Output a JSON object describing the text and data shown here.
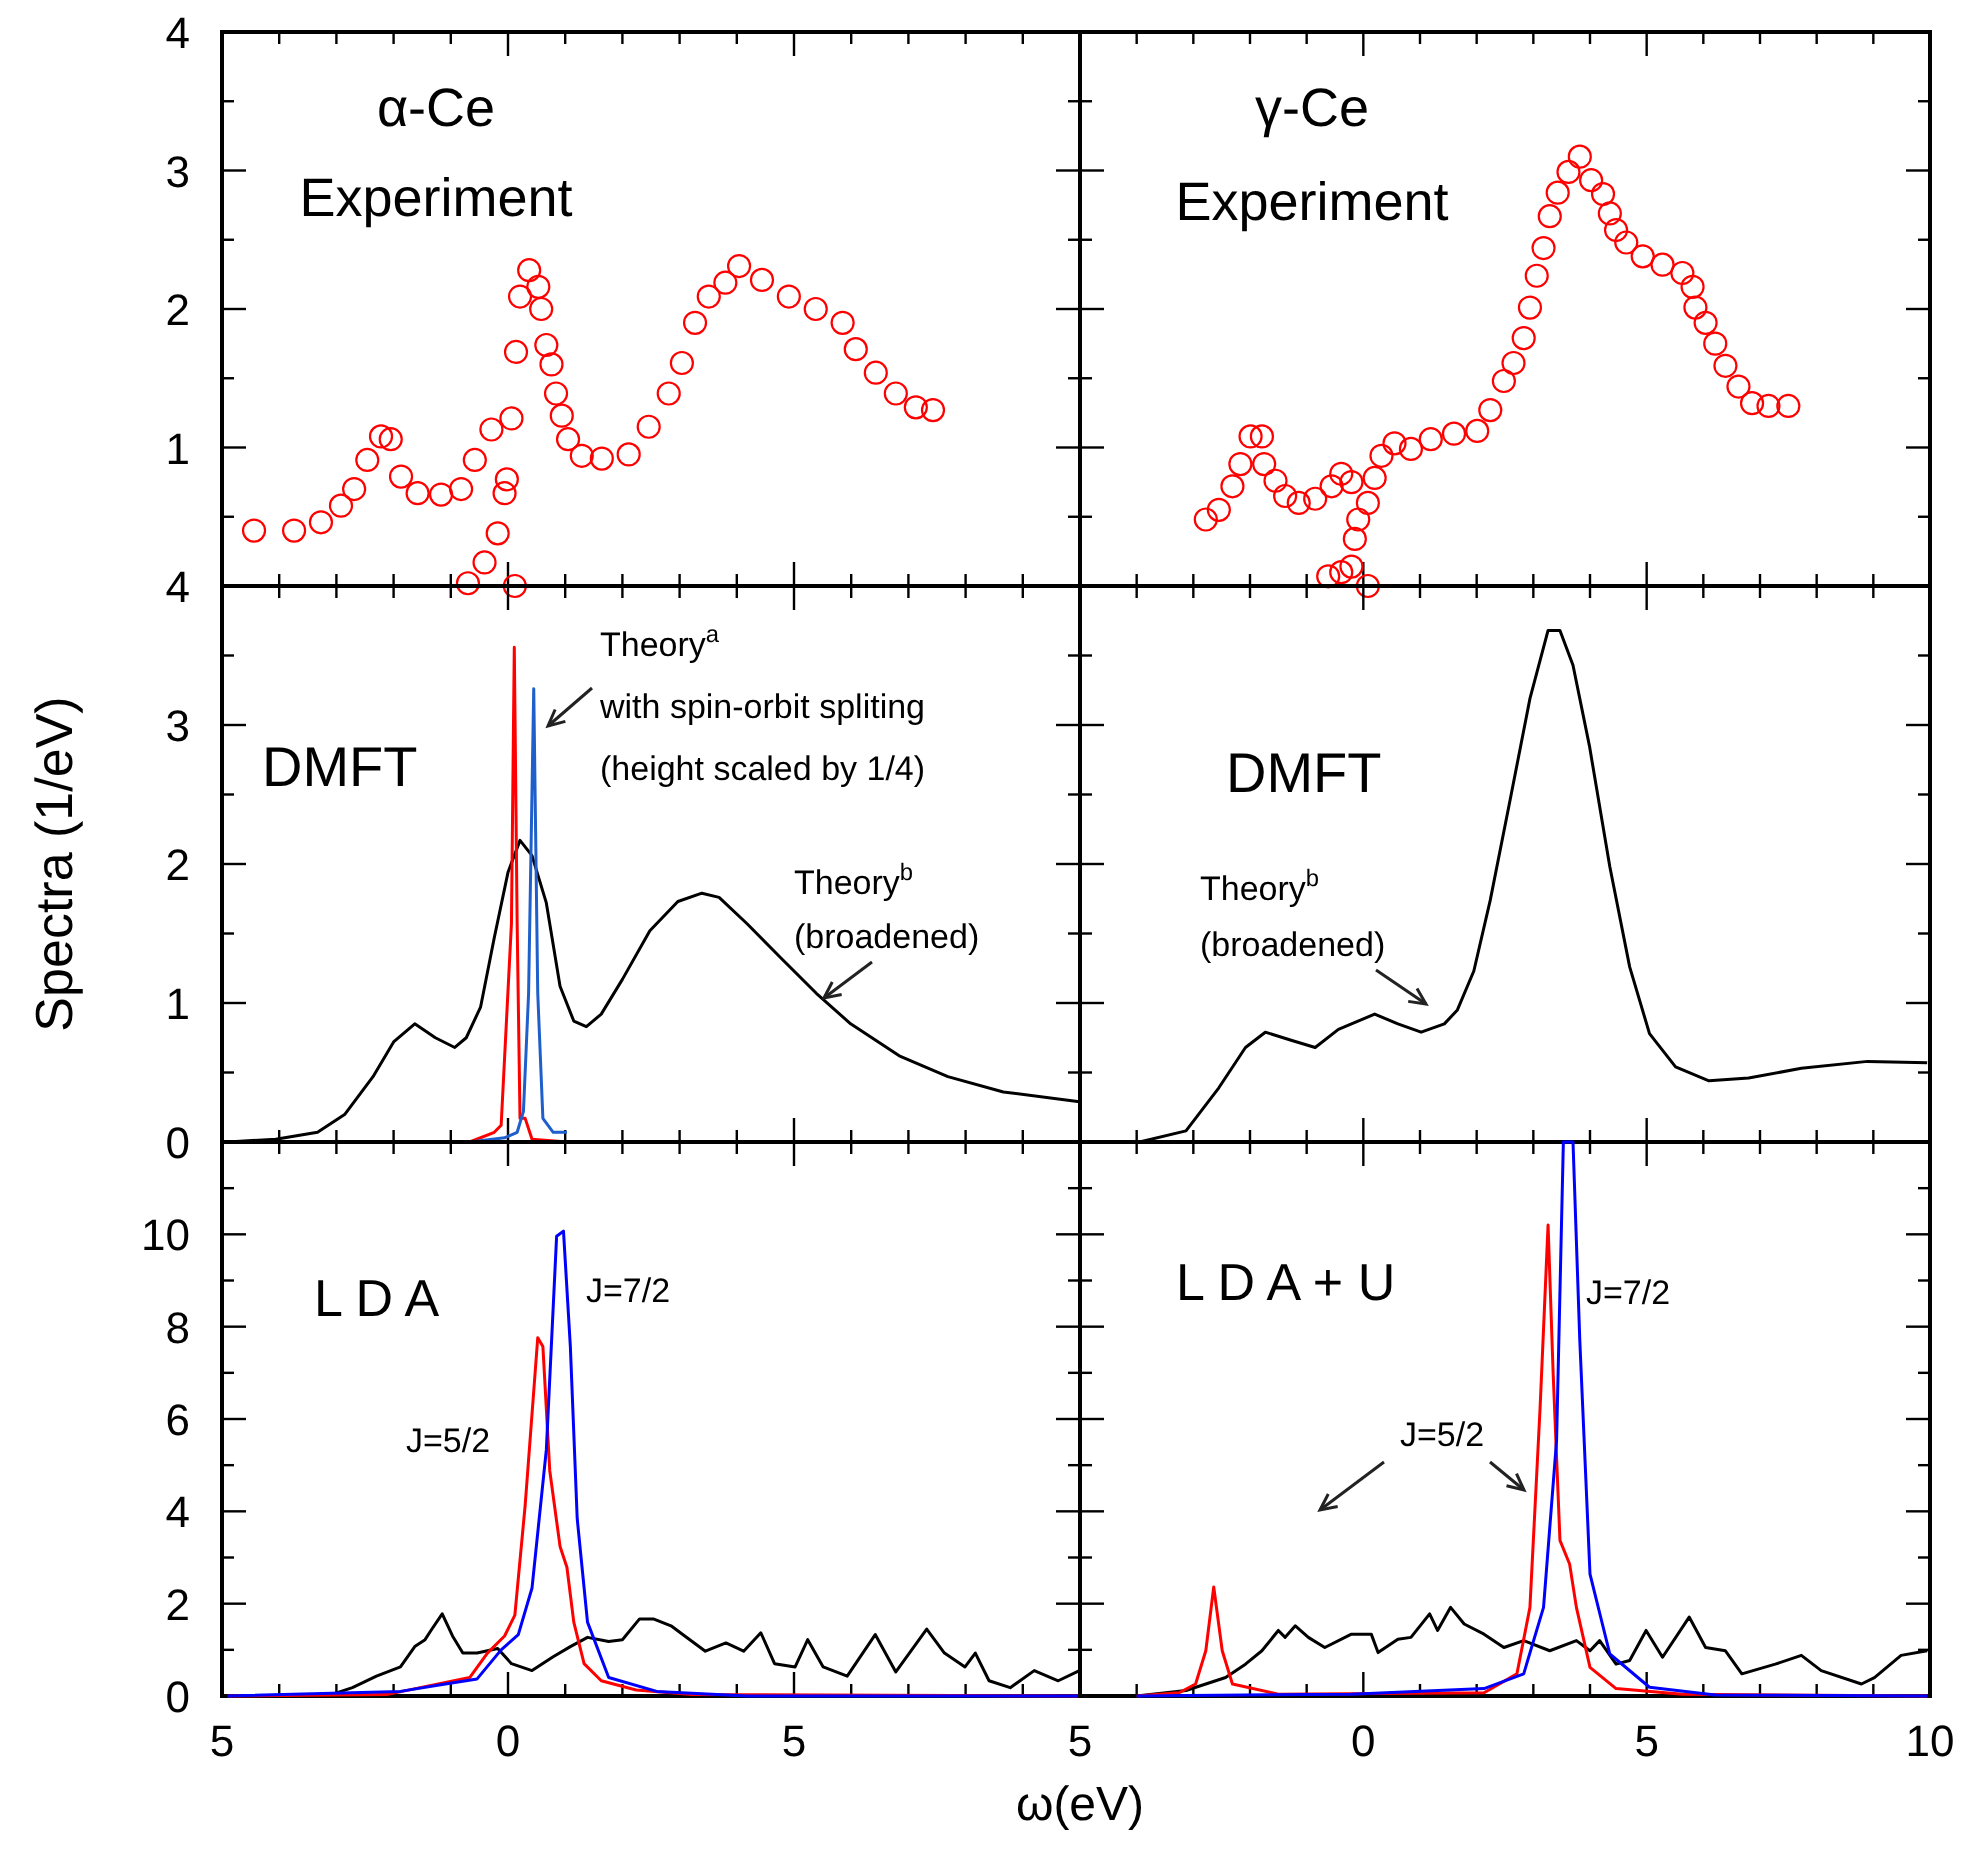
{
  "chart_data": [
    {
      "type": "scatter",
      "title": "α-Ce\nExperiment",
      "marker": "circle",
      "tick_labels": "y",
      "xlim": [
        -5,
        10
      ],
      "ylim": [
        0,
        4
      ],
      "xticks": [
        -5,
        {
          "value": -4,
          "label": null
        },
        {
          "value": -3,
          "label": null
        },
        {
          "value": -2,
          "label": null
        },
        {
          "value": -1,
          "label": null
        },
        0,
        {
          "value": 1,
          "label": null
        },
        {
          "value": 2,
          "label": null
        },
        {
          "value": 3,
          "label": null
        },
        {
          "value": 4,
          "label": null
        },
        5,
        {
          "value": 6,
          "label": null
        },
        {
          "value": 7,
          "label": null
        },
        {
          "value": 8,
          "label": null
        },
        {
          "value": 9,
          "label": null
        },
        {
          "value": 10,
          "label": null
        }
      ],
      "yticks": [
        {
          "value": 0,
          "label": null
        },
        {
          "value": 0.5,
          "label": null
        },
        1,
        {
          "value": 1.5,
          "label": null
        },
        2,
        {
          "value": 2.5,
          "label": null
        },
        3,
        {
          "value": 3.5,
          "label": null
        },
        4
      ],
      "series": [
        {
          "color": "#ff0000",
          "x": [
            -4.44,
            -3.74,
            -3.27,
            -2.92,
            -2.69,
            -2.46,
            -2.22,
            -2.05,
            -1.87,
            -1.58,
            -1.17,
            -0.82,
            -0.58,
            -0.29,
            0.06,
            -0.7,
            -0.41,
            -0.18,
            -0.06,
            -0.02,
            0.12,
            0.14,
            0.21,
            0.37,
            0.53,
            0.58,
            0.67,
            0.76,
            0.84,
            0.94,
            1.05,
            1.29,
            1.64,
            2.11,
            2.46,
            2.81,
            3.04,
            3.27,
            3.51,
            3.8,
            4.04,
            4.44,
            4.91,
            5.38,
            5.85,
            6.08,
            6.43,
            6.78,
            7.13,
            7.43
          ],
          "values": [
            0.4,
            0.4,
            0.46,
            0.58,
            0.7,
            0.91,
            1.08,
            1.06,
            0.79,
            0.67,
            0.66,
            0.7,
            0.91,
            1.13,
            1.21,
            0.02,
            0.17,
            0.38,
            0.67,
            0.77,
            0.0,
            1.69,
            2.09,
            2.28,
            2.16,
            2.0,
            1.74,
            1.6,
            1.39,
            1.23,
            1.06,
            0.94,
            0.92,
            0.95,
            1.15,
            1.39,
            1.61,
            1.9,
            2.09,
            2.19,
            2.31,
            2.21,
            2.09,
            2.0,
            1.9,
            1.71,
            1.54,
            1.39,
            1.29,
            1.27
          ]
        }
      ]
    },
    {
      "type": "scatter",
      "title": "γ-Ce\nExperiment",
      "marker": "circle",
      "tick_labels": false,
      "xlim": [
        -5,
        10
      ],
      "ylim": [
        0,
        4
      ],
      "xticks": [
        -5,
        {
          "value": -4,
          "label": null
        },
        {
          "value": -3,
          "label": null
        },
        {
          "value": -2,
          "label": null
        },
        {
          "value": -1,
          "label": null
        },
        0,
        {
          "value": 1,
          "label": null
        },
        {
          "value": 2,
          "label": null
        },
        {
          "value": 3,
          "label": null
        },
        {
          "value": 4,
          "label": null
        },
        5,
        {
          "value": 6,
          "label": null
        },
        {
          "value": 7,
          "label": null
        },
        {
          "value": 8,
          "label": null
        },
        {
          "value": 9,
          "label": null
        },
        10
      ],
      "yticks": [
        {
          "value": 0,
          "label": null
        },
        {
          "value": 0.5,
          "label": null
        },
        1,
        {
          "value": 1.5,
          "label": null
        },
        2,
        {
          "value": 2.5,
          "label": null
        },
        3,
        {
          "value": 3.5,
          "label": null
        },
        4
      ],
      "series": [
        {
          "color": "#ff0000",
          "x": [
            -2.78,
            -2.55,
            -2.31,
            -2.17,
            -1.99,
            -1.79,
            -1.75,
            -1.55,
            -1.38,
            -1.14,
            -0.85,
            -0.56,
            -0.39,
            -0.21,
            -0.62,
            -0.39,
            -0.21,
            -0.15,
            -0.09,
            0.08,
            0.08,
            0.2,
            0.32,
            0.55,
            0.84,
            1.19,
            1.6,
            2.01,
            2.24,
            2.48,
            2.65,
            2.83,
            2.94,
            3.06,
            3.18,
            3.29,
            3.43,
            3.62,
            3.82,
            4.02,
            4.23,
            4.35,
            4.46,
            4.64,
            4.93,
            5.28,
            5.63,
            5.81,
            5.86,
            6.04,
            6.21,
            6.39,
            6.62,
            6.86,
            7.15,
            7.5
          ],
          "values": [
            0.48,
            0.55,
            0.72,
            0.88,
            1.08,
            1.08,
            0.88,
            0.76,
            0.65,
            0.6,
            0.63,
            0.72,
            0.81,
            0.75,
            0.07,
            0.1,
            0.14,
            0.34,
            0.48,
            0.6,
            0.0,
            0.78,
            0.94,
            1.03,
            0.99,
            1.06,
            1.1,
            1.12,
            1.27,
            1.48,
            1.61,
            1.79,
            2.01,
            2.24,
            2.44,
            2.67,
            2.84,
            2.99,
            3.1,
            2.93,
            2.83,
            2.69,
            2.57,
            2.48,
            2.38,
            2.32,
            2.26,
            2.16,
            2.01,
            1.9,
            1.75,
            1.59,
            1.44,
            1.32,
            1.3,
            1.3
          ]
        }
      ]
    },
    {
      "type": "line",
      "title": "DMFT",
      "ylabel": "Spectra (1/eV)",
      "tick_labels": "y",
      "xlim": [
        -5,
        10
      ],
      "ylim": [
        0,
        4
      ],
      "xticks": [
        -5,
        {
          "value": -4,
          "label": null
        },
        {
          "value": -3,
          "label": null
        },
        {
          "value": -2,
          "label": null
        },
        {
          "value": -1,
          "label": null
        },
        0,
        {
          "value": 1,
          "label": null
        },
        {
          "value": 2,
          "label": null
        },
        {
          "value": 3,
          "label": null
        },
        {
          "value": 4,
          "label": null
        },
        5,
        {
          "value": 6,
          "label": null
        },
        {
          "value": 7,
          "label": null
        },
        {
          "value": 8,
          "label": null
        },
        {
          "value": 9,
          "label": null
        },
        {
          "value": 10,
          "label": null
        }
      ],
      "yticks": [
        0,
        {
          "value": 0.5,
          "label": null
        },
        1,
        {
          "value": 1.5,
          "label": null
        },
        2,
        {
          "value": 2.5,
          "label": null
        },
        3,
        {
          "value": 3.5,
          "label": null
        },
        4
      ],
      "annotations": [
        "Theory$^{a}$\nwith spin-orbit spliting\n(height scaled by 1/4)",
        "Theory$^{b}$\n(broadened)"
      ],
      "series": [
        {
          "color": "#000000",
          "x": [
            -4.9,
            -4.06,
            -3.33,
            -2.85,
            -2.36,
            -2.0,
            -1.63,
            -1.27,
            -0.93,
            -0.73,
            -0.48,
            -0.24,
            0,
            0.21,
            0.42,
            0.67,
            0.91,
            1.15,
            1.37,
            1.63,
            2.0,
            2.48,
            2.97,
            3.39,
            3.69,
            4.18,
            4.78,
            5.39,
            5.99,
            6.84,
            7.69,
            8.66,
            9.99
          ],
          "values": [
            0,
            0.02,
            0.07,
            0.2,
            0.47,
            0.72,
            0.85,
            0.75,
            0.68,
            0.75,
            0.97,
            1.47,
            1.94,
            2.17,
            2.06,
            1.72,
            1.12,
            0.87,
            0.83,
            0.92,
            1.17,
            1.52,
            1.73,
            1.79,
            1.76,
            1.57,
            1.32,
            1.07,
            0.85,
            0.62,
            0.47,
            0.36,
            0.29
          ]
        },
        {
          "color": "#ff0000",
          "x": [
            -0.67,
            -0.24,
            -0.12,
            0.06,
            0.11,
            0.16,
            0.21,
            0.3,
            0.42,
            1.03
          ],
          "values": [
            0,
            0.07,
            0.12,
            1.57,
            3.56,
            1.57,
            0.17,
            0.17,
            0.02,
            0
          ]
        },
        {
          "color": "#1f5fcc",
          "x": [
            -0.67,
            -0.06,
            0.16,
            0.27,
            0.36,
            0.45,
            0.52,
            0.61,
            0.79,
            1.03
          ],
          "values": [
            0,
            0.03,
            0.07,
            0.22,
            1.07,
            3.26,
            1.07,
            0.17,
            0.07,
            0.07
          ]
        }
      ]
    },
    {
      "type": "line",
      "title": "DMFT",
      "tick_labels": false,
      "xlim": [
        -5,
        10
      ],
      "ylim": [
        0,
        4
      ],
      "xticks": [
        -5,
        {
          "value": -4,
          "label": null
        },
        {
          "value": -3,
          "label": null
        },
        {
          "value": -2,
          "label": null
        },
        {
          "value": -1,
          "label": null
        },
        0,
        {
          "value": 1,
          "label": null
        },
        {
          "value": 2,
          "label": null
        },
        {
          "value": 3,
          "label": null
        },
        {
          "value": 4,
          "label": null
        },
        5,
        {
          "value": 6,
          "label": null
        },
        {
          "value": 7,
          "label": null
        },
        {
          "value": 8,
          "label": null
        },
        {
          "value": 9,
          "label": null
        },
        10
      ],
      "yticks": [
        0,
        {
          "value": 0.5,
          "label": null
        },
        1,
        {
          "value": 1.5,
          "label": null
        },
        2,
        {
          "value": 2.5,
          "label": null
        },
        3,
        {
          "value": 3.5,
          "label": null
        },
        4
      ],
      "annotations": [
        "Theory$^{b}$\n(broadened)"
      ],
      "series": [
        {
          "color": "#000000",
          "x": [
            -3.95,
            -3.13,
            -2.55,
            -2.08,
            -1.73,
            -1.26,
            -0.85,
            -0.44,
            0.2,
            0.61,
            1.02,
            1.43,
            1.66,
            1.95,
            2.24,
            2.59,
            2.94,
            3.26,
            3.47,
            3.7,
            3.99,
            4.35,
            4.7,
            5.05,
            5.51,
            6.1,
            6.8,
            7.73,
            8.9,
            9.95
          ],
          "values": [
            0,
            0.08,
            0.39,
            0.68,
            0.79,
            0.73,
            0.68,
            0.81,
            0.92,
            0.85,
            0.79,
            0.85,
            0.95,
            1.23,
            1.74,
            2.46,
            3.19,
            3.68,
            3.68,
            3.43,
            2.85,
            1.98,
            1.26,
            0.78,
            0.54,
            0.44,
            0.46,
            0.53,
            0.58,
            0.57
          ]
        }
      ]
    },
    {
      "type": "line",
      "title": "L D A",
      "xlabel": "ω(eV)",
      "xlim": [
        -5,
        10
      ],
      "ylim": [
        0,
        12
      ],
      "xticks": [
        {
          "value": -5,
          "label": "5"
        },
        {
          "value": -4,
          "label": null
        },
        {
          "value": -3,
          "label": null
        },
        {
          "value": -2,
          "label": null
        },
        {
          "value": -1,
          "label": null
        },
        0,
        {
          "value": 1,
          "label": null
        },
        {
          "value": 2,
          "label": null
        },
        {
          "value": 3,
          "label": null
        },
        {
          "value": 4,
          "label": null
        },
        5,
        {
          "value": 6,
          "label": null
        },
        {
          "value": 7,
          "label": null
        },
        {
          "value": 8,
          "label": null
        },
        {
          "value": 9,
          "label": null
        },
        {
          "value": 10,
          "label": null
        }
      ],
      "yticks": [
        0,
        {
          "value": 1,
          "label": null
        },
        2,
        {
          "value": 3,
          "label": null
        },
        4,
        {
          "value": 5,
          "label": null
        },
        6,
        {
          "value": 7,
          "label": null
        },
        8,
        {
          "value": 9,
          "label": null
        },
        10,
        {
          "value": 11,
          "label": null
        },
        {
          "value": 12,
          "label": null
        }
      ],
      "series": [
        {
          "color": "#000000",
          "x": [
            -4.9,
            -3.09,
            -2.72,
            -2.3,
            -1.88,
            -1.63,
            -1.45,
            -1.33,
            -1.15,
            -0.97,
            -0.79,
            -0.54,
            -0.18,
            0.06,
            0.42,
            0.79,
            1.09,
            1.39,
            1.76,
            2.0,
            2.3,
            2.54,
            2.85,
            3.09,
            3.45,
            3.81,
            4.12,
            4.42,
            4.66,
            5.02,
            5.24,
            5.51,
            5.93,
            6.42,
            6.78,
            7.32,
            7.63,
            7.99,
            8.17,
            8.41,
            8.78,
            9.2,
            9.62,
            9.99
          ],
          "values": [
            0,
            0.03,
            0.18,
            0.43,
            0.63,
            1.07,
            1.22,
            1.45,
            1.78,
            1.3,
            0.93,
            0.93,
            1.03,
            0.7,
            0.55,
            0.85,
            1.07,
            1.27,
            1.18,
            1.22,
            1.67,
            1.67,
            1.52,
            1.3,
            0.97,
            1.15,
            0.97,
            1.37,
            0.7,
            0.63,
            1.22,
            0.63,
            0.43,
            1.33,
            0.52,
            1.45,
            0.93,
            0.63,
            0.93,
            0.33,
            0.18,
            0.55,
            0.33,
            0.55
          ]
        },
        {
          "name": "J=5/2",
          "color": "#ff0000",
          "x": [
            -4.9,
            -2.12,
            -1.39,
            -0.67,
            -0.36,
            -0.06,
            0.12,
            0.3,
            0.52,
            0.61,
            0.73,
            0.91,
            1.03,
            1.15,
            1.33,
            1.63,
            2.24,
            3.21,
            9.99
          ],
          "values": [
            0,
            0.03,
            0.22,
            0.4,
            0.93,
            1.3,
            1.75,
            4.13,
            7.76,
            7.57,
            4.88,
            3.24,
            2.79,
            1.6,
            0.7,
            0.33,
            0.13,
            0.03,
            0
          ]
        },
        {
          "name": "J=7/2",
          "color": "#0000ff",
          "x": [
            -4.9,
            -1.88,
            -1.15,
            -0.54,
            -0.12,
            0.18,
            0.42,
            0.67,
            0.85,
            0.97,
            1.09,
            1.21,
            1.39,
            1.76,
            2.6,
            4.18,
            9.99
          ],
          "values": [
            0,
            0.1,
            0.25,
            0.37,
            1.0,
            1.33,
            2.34,
            5.33,
            9.96,
            10.07,
            7.57,
            3.84,
            1.6,
            0.4,
            0.1,
            0,
            0
          ]
        }
      ]
    },
    {
      "type": "line",
      "title": "L D A + U",
      "tick_labels": "x",
      "xlim": [
        -5,
        10
      ],
      "ylim": [
        0,
        12
      ],
      "xticks": [
        {
          "value": -5,
          "label": "5"
        },
        {
          "value": -4,
          "label": null
        },
        {
          "value": -3,
          "label": null
        },
        {
          "value": -2,
          "label": null
        },
        {
          "value": -1,
          "label": null
        },
        0,
        {
          "value": 1,
          "label": null
        },
        {
          "value": 2,
          "label": null
        },
        {
          "value": 3,
          "label": null
        },
        {
          "value": 4,
          "label": null
        },
        5,
        {
          "value": 6,
          "label": null
        },
        {
          "value": 7,
          "label": null
        },
        {
          "value": 8,
          "label": null
        },
        {
          "value": 9,
          "label": null
        },
        10
      ],
      "yticks": [
        0,
        {
          "value": 1,
          "label": null
        },
        2,
        {
          "value": 3,
          "label": null
        },
        4,
        {
          "value": 5,
          "label": null
        },
        6,
        {
          "value": 7,
          "label": null
        },
        8,
        {
          "value": 9,
          "label": null
        },
        10,
        {
          "value": 11,
          "label": null
        },
        {
          "value": 12,
          "label": null
        }
      ],
      "series": [
        {
          "color": "#000000",
          "x": [
            -4.0,
            -3.13,
            -2.43,
            -2.08,
            -1.79,
            -1.5,
            -1.38,
            -1.2,
            -0.97,
            -0.68,
            -0.21,
            0.14,
            0.26,
            0.61,
            0.84,
            1.17,
            1.31,
            1.54,
            1.78,
            2.13,
            2.48,
            2.83,
            3.29,
            3.76,
            4.0,
            4.17,
            4.46,
            4.7,
            4.99,
            5.28,
            5.75,
            6.04,
            6.39,
            6.68,
            7.27,
            7.73,
            8.08,
            8.79,
            9.02,
            9.49,
            9.95
          ],
          "values": [
            0,
            0.12,
            0.4,
            0.69,
            0.98,
            1.42,
            1.27,
            1.52,
            1.27,
            1.05,
            1.34,
            1.34,
            0.94,
            1.23,
            1.27,
            1.78,
            1.42,
            1.92,
            1.56,
            1.34,
            1.05,
            1.2,
            0.98,
            1.2,
            0.98,
            1.2,
            0.69,
            0.77,
            1.42,
            0.84,
            1.71,
            1.05,
            0.98,
            0.48,
            0.69,
            0.88,
            0.55,
            0.26,
            0.4,
            0.88,
            0.98
          ]
        },
        {
          "name": "J=5/2",
          "color": "#ff0000",
          "x": [
            -4.0,
            -3.25,
            -2.96,
            -2.78,
            -2.64,
            -2.49,
            -2.31,
            -1.5,
            2.13,
            2.71,
            2.94,
            3.12,
            3.26,
            3.35,
            3.47,
            3.64,
            3.76,
            4.0,
            4.46,
            5.63,
            9.95
          ],
          "values": [
            0,
            0.07,
            0.26,
            0.98,
            2.36,
            0.98,
            0.26,
            0.04,
            0.07,
            0.48,
            1.92,
            6.26,
            10.2,
            6.98,
            3.37,
            2.86,
            1.92,
            0.62,
            0.16,
            0.04,
            0
          ]
        },
        {
          "name": "J=7/2",
          "color": "#0000ff",
          "x": [
            -4.0,
            -0.21,
            2.13,
            2.83,
            3.18,
            3.41,
            3.53,
            3.7,
            3.82,
            4.0,
            4.35,
            5.05,
            6.21,
            9.95
          ],
          "values": [
            0,
            0.04,
            0.16,
            0.48,
            1.92,
            5.53,
            12,
            12,
            7.7,
            2.64,
            0.91,
            0.19,
            0.02,
            0
          ]
        }
      ]
    }
  ]
}
